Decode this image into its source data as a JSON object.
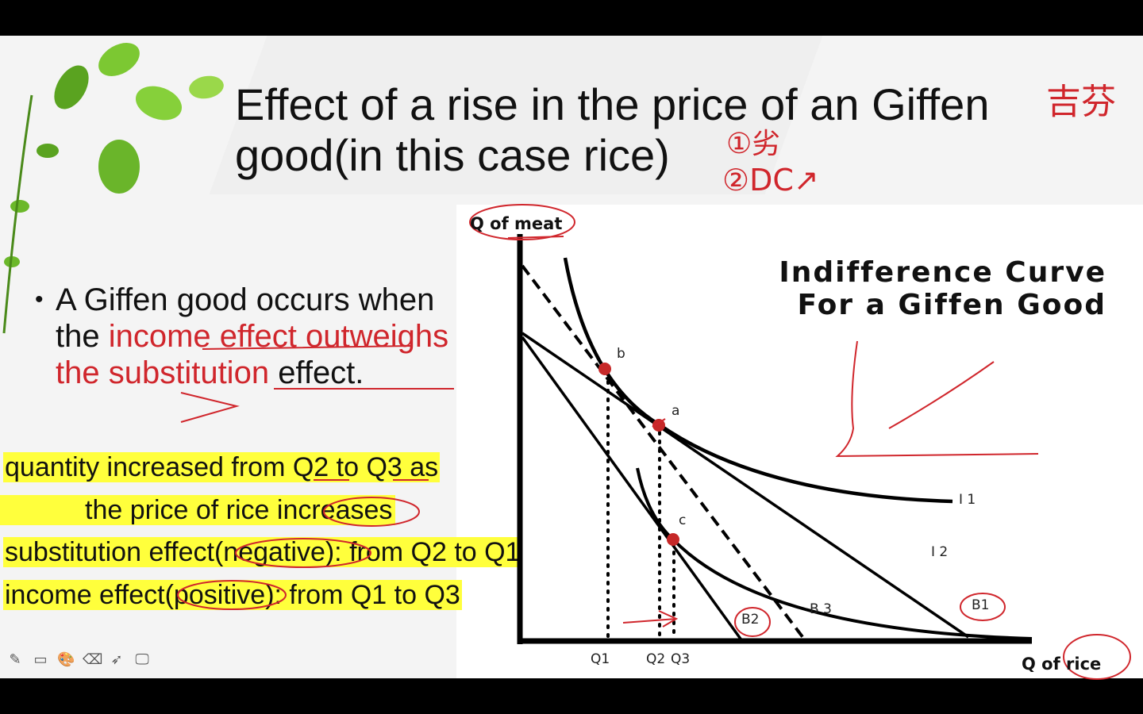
{
  "slide": {
    "title_line1": "Effect of a rise in the price of an Giffen",
    "title_line2": "good(in this case rice)",
    "bullet": {
      "pre": "A Giffen good occurs when the ",
      "red1": "income effect",
      "red2": "outweighs the substitution",
      "post": "effect."
    },
    "highlights": [
      "quantity increased from Q2 to Q3 as",
      "the price of rice increases",
      "substitution effect(negative): from Q2 to Q1",
      "income effect(positive): from Q1 to Q3"
    ],
    "highlight_color": "#ffff3c",
    "annotation_color": "#d0262c"
  },
  "diagram": {
    "title_line1": "Indifference Curve",
    "title_line2": "For a Giffen Good",
    "y_axis_label": "Q of meat",
    "x_axis_label": "Q of rice",
    "points": [
      "b",
      "a",
      "c"
    ],
    "curves": [
      "I 1",
      "I 2"
    ],
    "budget_lines": [
      "B1",
      "B2",
      "B 3"
    ],
    "x_ticks": [
      "Q1",
      "Q2",
      "Q3"
    ]
  },
  "handwriting": {
    "top_right": "吉芬",
    "note1": "①劣",
    "note2": "②DC↗"
  },
  "toolbar": {
    "tools": [
      "pen-icon",
      "whiteboard-icon",
      "palette-icon",
      "eraser-icon",
      "pointer-icon",
      "screen-icon"
    ]
  }
}
